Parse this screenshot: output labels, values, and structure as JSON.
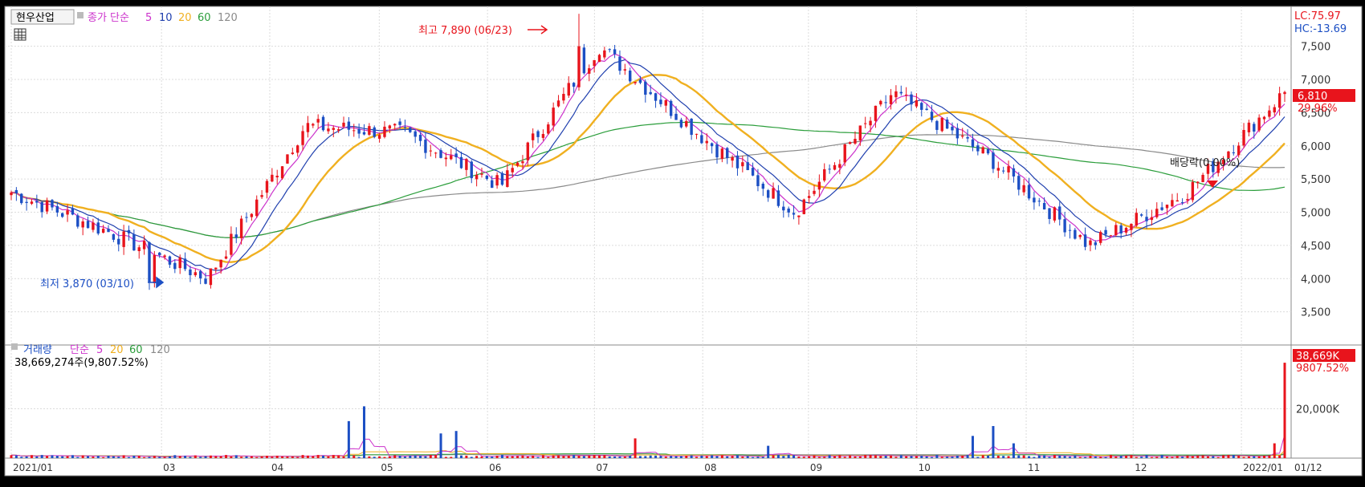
{
  "header": {
    "stock_name": "현우산업",
    "legend_prefix": "종가 단순",
    "ma_labels": [
      "5",
      "10",
      "20",
      "60",
      "120"
    ],
    "lc_label": "LC:75.97",
    "hc_label": "HC:-13.69"
  },
  "volume_header": {
    "title": "거래량",
    "legend_prefix": "단순",
    "ma_labels": [
      "5",
      "20",
      "60",
      "120"
    ],
    "total": "38,669,274주(9,807.52%)"
  },
  "annotations": {
    "high": "최고 7,890 (06/23)",
    "low": "최저 3,870 (03/10)",
    "dividend": "배당락(0.00%)"
  },
  "price_tags": {
    "last_price": "6,810",
    "last_change": "29.96%",
    "last_volume": "38,669K",
    "last_volume_pct": "9807.52%"
  },
  "colors": {
    "up": "#e8141c",
    "down": "#1c4fc4",
    "ma5": "#cc33cc",
    "ma10": "#1f3fae",
    "ma20": "#f0b020",
    "ma60": "#2a9d3a",
    "ma120": "#8a8a8a",
    "grid": "#dcdcdc",
    "axis_text": "#333333"
  },
  "chart_data": {
    "type": "candlestick",
    "period": "2021/01 - 2022/01",
    "x_tick_labels": [
      "2021/01",
      "03",
      "04",
      "05",
      "06",
      "07",
      "08",
      "09",
      "10",
      "11",
      "12",
      "2022/01",
      "01/12"
    ],
    "price_axis": {
      "ticks": [
        "7,500",
        "7,000",
        "6,500",
        "6,000",
        "5,500",
        "5,000",
        "4,500",
        "4,000",
        "3,500"
      ],
      "ylim": [
        3000,
        8100
      ]
    },
    "volume_axis": {
      "ticks": [
        "20,000K"
      ],
      "ylim": [
        0,
        40000
      ]
    },
    "price_keypoints": [
      {
        "period": "2021/01",
        "close": 5300
      },
      {
        "period": "2021/02",
        "close": 4700
      },
      {
        "period": "2021/03",
        "close": 4000
      },
      {
        "period": "2021/04 early",
        "close": 6300
      },
      {
        "period": "2021/04 late",
        "close": 6200
      },
      {
        "period": "2021/05",
        "close": 5400
      },
      {
        "period": "2021/06",
        "close": 7500
      },
      {
        "period": "2021/07",
        "close": 6200
      },
      {
        "period": "2021/08",
        "close": 5000
      },
      {
        "period": "2021/09",
        "close": 6800
      },
      {
        "period": "2021/10",
        "close": 5800
      },
      {
        "period": "2021/11",
        "close": 4500
      },
      {
        "period": "2021/12",
        "close": 5300
      },
      {
        "period": "2022/01",
        "close": 6810
      }
    ],
    "high": 7890,
    "low": 3870,
    "last": 6810,
    "moving_averages": [
      "5",
      "10",
      "20",
      "60",
      "120"
    ]
  }
}
